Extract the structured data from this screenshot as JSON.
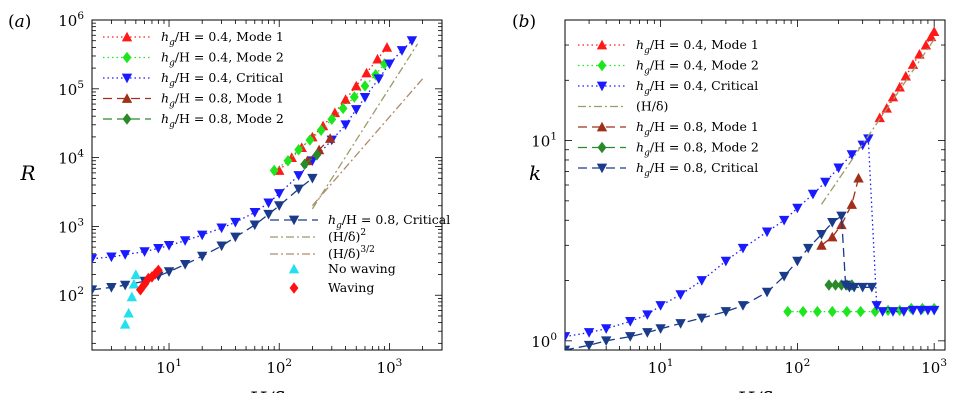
{
  "chart_data": [
    {
      "type": "scatter",
      "panel_label": "(a)",
      "xlabel": "H/δ",
      "ylabel": "R",
      "x_scale": "log",
      "y_scale": "log",
      "xlim": [
        2,
        3000
      ],
      "ylim": [
        16,
        1000000
      ],
      "xticks": [
        {
          "value": 10,
          "base": "10",
          "exp": "1"
        },
        {
          "value": 100,
          "base": "10",
          "exp": "2"
        },
        {
          "value": 1000,
          "base": "10",
          "exp": "3"
        }
      ],
      "yticks": [
        {
          "value": 100,
          "base": "10",
          "exp": "2"
        },
        {
          "value": 1000,
          "base": "10",
          "exp": "3"
        },
        {
          "value": 10000,
          "base": "10",
          "exp": "4"
        },
        {
          "value": 100000,
          "base": "10",
          "exp": "5"
        },
        {
          "value": 1000000,
          "base": "10",
          "exp": "6"
        }
      ],
      "grid": false,
      "series": [
        {
          "name": "h_g/H = 0.4, Mode 1",
          "color": "#ff1a1a",
          "marker": "triangle-up",
          "line": "dotted",
          "x": [
            100,
            130,
            160,
            200,
            250,
            320,
            400,
            500,
            620,
            780,
            950
          ],
          "y": [
            6500,
            10000,
            14000,
            20000,
            29000,
            45000,
            70000,
            110000,
            170000,
            270000,
            400000
          ]
        },
        {
          "name": "h_g/H = 0.4, Mode 2",
          "color": "#1ee61e",
          "marker": "diamond",
          "line": "dotted",
          "x": [
            90,
            120,
            150,
            190,
            240,
            300,
            380,
            480,
            600,
            750,
            900
          ],
          "y": [
            6500,
            9000,
            13000,
            18000,
            25000,
            36000,
            52000,
            76000,
            110000,
            160000,
            230000
          ]
        },
        {
          "name": "h_g/H = 0.4, Critical",
          "color": "#1a1aff",
          "marker": "triangle-down",
          "line": "dotted",
          "x": [
            2,
            3,
            4,
            6,
            8,
            10,
            14,
            20,
            30,
            40,
            60,
            80,
            100,
            150,
            200,
            300,
            400,
            500,
            600,
            800,
            1000,
            1300,
            1600
          ],
          "y": [
            340,
            360,
            390,
            430,
            480,
            530,
            620,
            750,
            950,
            1150,
            1600,
            2200,
            3000,
            5500,
            9000,
            18000,
            30000,
            50000,
            75000,
            140000,
            230000,
            360000,
            500000
          ]
        },
        {
          "name": "h_g/H = 0.8, Mode 1",
          "color": "#a0301a",
          "marker": "triangle-up",
          "line": "dashed",
          "x": [
            180,
            230,
            290
          ],
          "y": [
            9000,
            13000,
            19000
          ]
        },
        {
          "name": "h_g/H = 0.8, Mode 2",
          "color": "#2a8a2a",
          "marker": "diamond",
          "line": "dashed",
          "x": [
            170,
            220
          ],
          "y": [
            8000,
            11000
          ]
        },
        {
          "name": "h_g/H = 0.8, Critical",
          "color": "#1a3a8a",
          "marker": "triangle-down",
          "line": "dashed",
          "x": [
            2,
            3,
            4,
            6,
            8,
            10,
            14,
            20,
            30,
            40,
            60,
            80,
            100,
            150,
            200
          ],
          "y": [
            120,
            130,
            140,
            160,
            190,
            220,
            280,
            370,
            520,
            700,
            1050,
            1500,
            2000,
            3500,
            5000
          ]
        },
        {
          "name": "(H/δ)^2",
          "color": "#9a9a6a",
          "marker": "none",
          "line": "dashdot",
          "x": [
            200,
            1800
          ],
          "y": [
            1800,
            450000
          ]
        },
        {
          "name": "(H/δ)^{3/2}",
          "color": "#b08a6a",
          "marker": "none",
          "line": "dashdot",
          "x": [
            200,
            2000
          ],
          "y": [
            2000,
            140000
          ]
        },
        {
          "name": "No waving",
          "color": "#22e0f0",
          "marker": "triangle-up",
          "line": "none",
          "x": [
            4.0,
            4.3,
            4.6,
            4.8,
            5.0
          ],
          "y": [
            38,
            55,
            95,
            145,
            200
          ]
        },
        {
          "name": "Waving",
          "color": "#ff1010",
          "marker": "diamond",
          "line": "none",
          "x": [
            5.5,
            6.0,
            6.5,
            7.0,
            7.5,
            8.0
          ],
          "y": [
            120,
            145,
            175,
            185,
            205,
            230
          ]
        }
      ],
      "legend": [
        {
          "a": "h",
          "sub": "g",
          "rest": "/H = 0.4, Mode 1"
        },
        {
          "a": "h",
          "sub": "g",
          "rest": "/H = 0.4, Mode 2"
        },
        {
          "a": "h",
          "sub": "g",
          "rest": "/H = 0.4, Critical"
        },
        {
          "a": "h",
          "sub": "g",
          "rest": "/H = 0.8, Mode 1"
        },
        {
          "a": "h",
          "sub": "g",
          "rest": "/H = 0.8, Mode 2"
        },
        {
          "a": "h",
          "sub": "g",
          "rest": "/H = 0.8, Critical"
        },
        {
          "a": "(H/δ)",
          "sup": "2"
        },
        {
          "a": "(H/δ)",
          "sup": "3/2"
        },
        {
          "a": "No waving"
        },
        {
          "a": "Waving"
        }
      ]
    },
    {
      "type": "scatter",
      "panel_label": "(b)",
      "xlabel": "H/δ",
      "ylabel": "k",
      "x_scale": "log",
      "y_scale": "log",
      "xlim": [
        2,
        1200
      ],
      "ylim": [
        0.9,
        40
      ],
      "xticks": [
        {
          "value": 10,
          "base": "10",
          "exp": "1"
        },
        {
          "value": 100,
          "base": "10",
          "exp": "2"
        },
        {
          "value": 1000,
          "base": "10",
          "exp": "3"
        }
      ],
      "yticks": [
        {
          "value": 1,
          "base": "10",
          "exp": "0"
        },
        {
          "value": 10,
          "base": "10",
          "exp": "1"
        }
      ],
      "grid": false,
      "series": [
        {
          "name": "h_g/H = 0.4, Mode 1",
          "color": "#ff1a1a",
          "marker": "triangle-up",
          "line": "dotted",
          "x": [
            400,
            450,
            500,
            560,
            620,
            700,
            780,
            870,
            950,
            1000
          ],
          "y": [
            13,
            14.5,
            16.5,
            18.5,
            21,
            24,
            27,
            30,
            33,
            35
          ]
        },
        {
          "name": "h_g/H = 0.4, Mode 2",
          "color": "#1ee61e",
          "marker": "diamond",
          "line": "dotted",
          "x": [
            85,
            110,
            140,
            180,
            230,
            290,
            370,
            460,
            560,
            680,
            820,
            1000
          ],
          "y": [
            1.4,
            1.4,
            1.4,
            1.4,
            1.4,
            1.4,
            1.4,
            1.42,
            1.42,
            1.45,
            1.45,
            1.45
          ]
        },
        {
          "name": "h_g/H = 0.4, Critical",
          "color": "#1a1aff",
          "marker": "triangle-down",
          "line": "dotted",
          "x": [
            2,
            3,
            4,
            6,
            8,
            10,
            14,
            20,
            30,
            40,
            60,
            80,
            100,
            130,
            160,
            200,
            250,
            300,
            330,
            380,
            420,
            500,
            600,
            700,
            800,
            900,
            1000
          ],
          "y": [
            1.05,
            1.1,
            1.15,
            1.25,
            1.35,
            1.5,
            1.7,
            2.0,
            2.5,
            2.9,
            3.5,
            4.0,
            4.6,
            5.4,
            6.2,
            7.3,
            8.5,
            9.5,
            10.2,
            1.5,
            1.4,
            1.4,
            1.4,
            1.42,
            1.42,
            1.42,
            1.42
          ]
        },
        {
          "name": "(H/δ)",
          "color": "#9a9a6a",
          "marker": "none",
          "line": "dashdot",
          "x": [
            150,
            1000
          ],
          "y": [
            4.8,
            32
          ]
        },
        {
          "name": "h_g/H = 0.8, Mode 1",
          "color": "#a0301a",
          "marker": "triangle-up",
          "line": "dashed",
          "x": [
            150,
            180,
            210,
            250,
            280
          ],
          "y": [
            3.0,
            3.3,
            3.8,
            4.8,
            6.5
          ]
        },
        {
          "name": "h_g/H = 0.8, Mode 2",
          "color": "#2a8a2a",
          "marker": "diamond",
          "line": "dashed",
          "x": [
            170,
            190,
            210,
            230,
            250
          ],
          "y": [
            1.9,
            1.9,
            1.9,
            1.9,
            1.9
          ]
        },
        {
          "name": "h_g/H = 0.8, Critical",
          "color": "#1a3a8a",
          "marker": "triangle-down",
          "line": "dashed",
          "x": [
            2,
            3,
            4,
            6,
            8,
            10,
            14,
            20,
            30,
            40,
            60,
            80,
            100,
            120,
            150,
            180,
            210,
            225,
            240,
            260,
            300,
            350
          ],
          "y": [
            0.9,
            0.95,
            1.0,
            1.05,
            1.1,
            1.15,
            1.22,
            1.3,
            1.4,
            1.5,
            1.75,
            2.1,
            2.5,
            2.9,
            3.4,
            3.9,
            4.2,
            1.9,
            1.85,
            1.85,
            1.85,
            1.85
          ]
        }
      ],
      "legend": [
        {
          "a": "h",
          "sub": "g",
          "rest": "/H = 0.4, Mode 1"
        },
        {
          "a": "h",
          "sub": "g",
          "rest": "/H = 0.4, Mode 2"
        },
        {
          "a": "h",
          "sub": "g",
          "rest": "/H = 0.4, Critical"
        },
        {
          "a": "(H/δ)"
        },
        {
          "a": "h",
          "sub": "g",
          "rest": "/H = 0.8, Mode 1"
        },
        {
          "a": "h",
          "sub": "g",
          "rest": "/H = 0.8, Mode 2"
        },
        {
          "a": "h",
          "sub": "g",
          "rest": "/H = 0.8, Critical"
        }
      ]
    }
  ]
}
